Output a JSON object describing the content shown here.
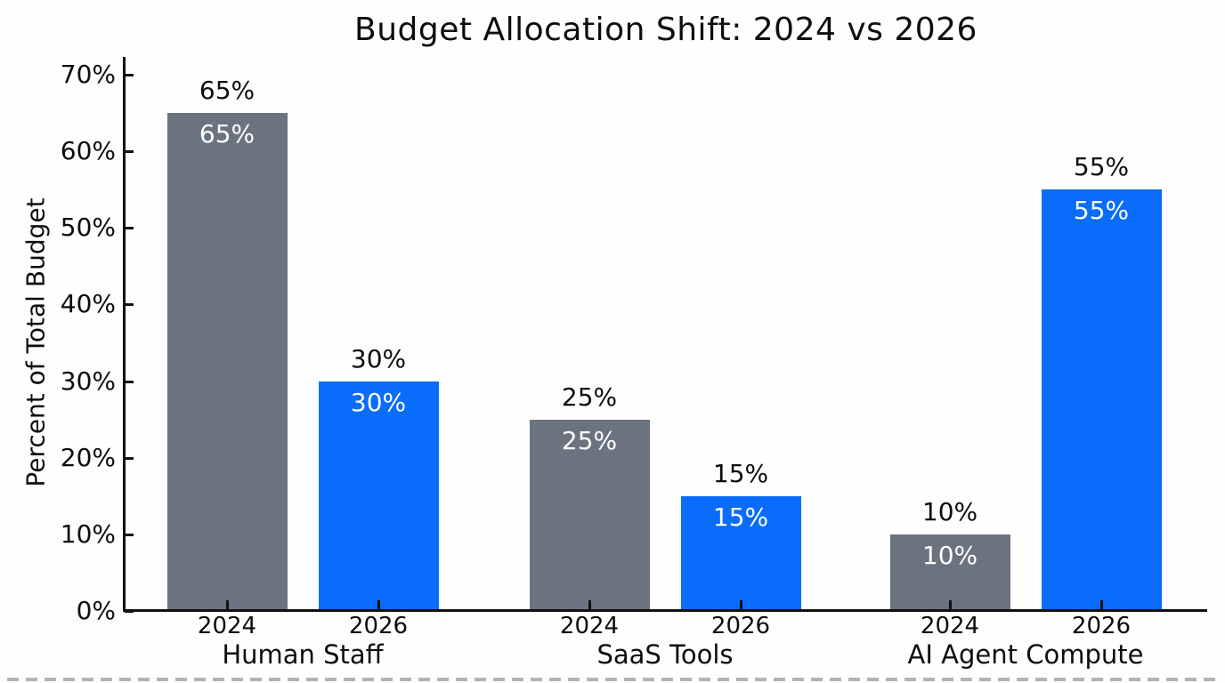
{
  "chart_data": {
    "type": "bar",
    "title": "Budget Allocation Shift: 2024 vs 2026",
    "ylabel": "Percent of Total Budget",
    "xlabel": "",
    "categories": [
      "Human Staff",
      "SaaS Tools",
      "AI Agent Compute"
    ],
    "series": [
      {
        "name": "2024",
        "color": "#6b7280",
        "values": [
          65,
          25,
          10
        ],
        "value_labels": [
          "65%",
          "25%",
          "10%"
        ]
      },
      {
        "name": "2026",
        "color": "#0a6cfa",
        "values": [
          30,
          15,
          55
        ],
        "value_labels": [
          "30%",
          "15%",
          "55%"
        ]
      }
    ],
    "ylim": [
      0,
      70
    ],
    "yticks": [
      0,
      10,
      20,
      30,
      40,
      50,
      60,
      70
    ],
    "ytick_labels": [
      "0%",
      "10%",
      "20%",
      "30%",
      "40%",
      "50%",
      "60%",
      "70%"
    ],
    "grid": false,
    "legend": "none",
    "tick_direction": "in",
    "value_labels_shown_above_and_inside_bars": true
  },
  "style": {
    "background": "#fefefe",
    "axis_color": "#111111",
    "text_color": "#0d0d0d",
    "inside_label_color": "#ffffff",
    "bar_color_2024": "#6b7280",
    "bar_color_2026": "#0a6cfa"
  }
}
